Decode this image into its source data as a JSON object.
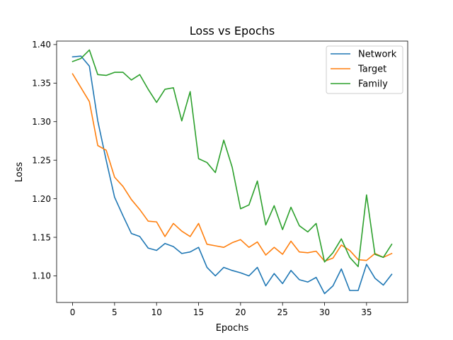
{
  "chart_data": {
    "type": "line",
    "title": "Loss vs Epochs",
    "xlabel": "Epochs",
    "ylabel": "Loss",
    "xlim": [
      -1.9,
      39.9
    ],
    "ylim": [
      1.0655,
      1.4045
    ],
    "xticks": [
      0,
      5,
      10,
      15,
      20,
      25,
      30,
      35
    ],
    "yticks": [
      1.1,
      1.15,
      1.2,
      1.25,
      1.3,
      1.35,
      1.4
    ],
    "xtick_labels": [
      "0",
      "5",
      "10",
      "15",
      "20",
      "25",
      "30",
      "35"
    ],
    "ytick_labels": [
      "1.10",
      "1.15",
      "1.20",
      "1.25",
      "1.30",
      "1.35",
      "1.40"
    ],
    "grid": false,
    "legend_position": "top-right",
    "x": [
      0,
      1,
      2,
      3,
      4,
      5,
      6,
      7,
      8,
      9,
      10,
      11,
      12,
      13,
      14,
      15,
      16,
      17,
      18,
      19,
      20,
      21,
      22,
      23,
      24,
      25,
      26,
      27,
      28,
      29,
      30,
      31,
      32,
      33,
      34,
      35,
      36,
      37,
      38
    ],
    "series": [
      {
        "name": "Network",
        "color": "#1f77b4",
        "values": [
          1.384,
          1.385,
          1.372,
          1.301,
          1.25,
          1.202,
          1.178,
          1.155,
          1.151,
          1.136,
          1.133,
          1.142,
          1.138,
          1.129,
          1.131,
          1.137,
          1.111,
          1.1,
          1.111,
          1.107,
          1.104,
          1.1,
          1.111,
          1.087,
          1.103,
          1.09,
          1.107,
          1.095,
          1.092,
          1.098,
          1.077,
          1.087,
          1.109,
          1.081,
          1.081,
          1.115,
          1.097,
          1.088,
          1.102
        ]
      },
      {
        "name": "Target",
        "color": "#ff7f0e",
        "values": [
          1.362,
          1.344,
          1.326,
          1.269,
          1.263,
          1.228,
          1.216,
          1.199,
          1.186,
          1.171,
          1.17,
          1.151,
          1.168,
          1.158,
          1.151,
          1.168,
          1.141,
          1.139,
          1.137,
          1.143,
          1.147,
          1.137,
          1.144,
          1.127,
          1.137,
          1.128,
          1.145,
          1.131,
          1.13,
          1.132,
          1.119,
          1.123,
          1.14,
          1.133,
          1.121,
          1.12,
          1.129,
          1.124,
          1.129
        ]
      },
      {
        "name": "Family",
        "color": "#2ca02c",
        "values": [
          1.378,
          1.382,
          1.393,
          1.361,
          1.36,
          1.364,
          1.364,
          1.354,
          1.361,
          1.342,
          1.325,
          1.342,
          1.344,
          1.301,
          1.339,
          1.252,
          1.247,
          1.234,
          1.276,
          1.241,
          1.187,
          1.192,
          1.223,
          1.166,
          1.191,
          1.16,
          1.189,
          1.165,
          1.157,
          1.168,
          1.118,
          1.13,
          1.148,
          1.124,
          1.112,
          1.205,
          1.128,
          1.124,
          1.141
        ]
      }
    ]
  }
}
